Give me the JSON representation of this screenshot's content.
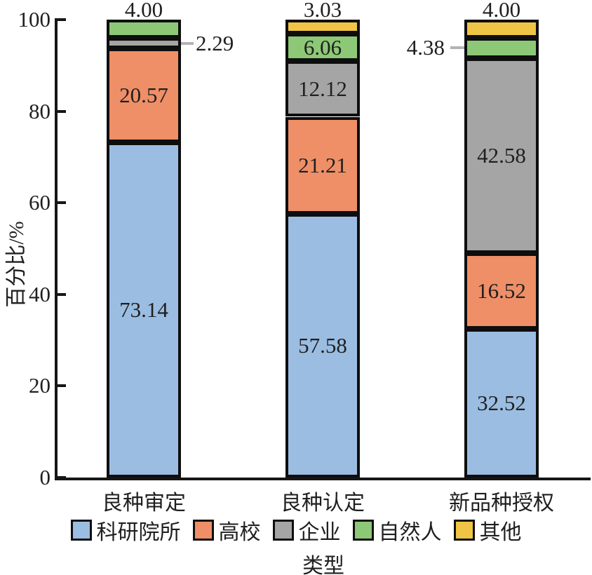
{
  "chart_data": {
    "type": "stacked_bar",
    "title": "",
    "categories": [
      "良种审定",
      "良种认定",
      "新品种授权"
    ],
    "series": [
      {
        "name": "科研院所",
        "color": "#9bbde2",
        "values": [
          73.14,
          57.58,
          32.52
        ]
      },
      {
        "name": "高校",
        "color": "#ef8f67",
        "values": [
          20.57,
          21.21,
          16.52
        ]
      },
      {
        "name": "企业",
        "color": "#a5a5a5",
        "values": [
          2.29,
          12.12,
          42.58
        ]
      },
      {
        "name": "自然人",
        "color": "#8dc877",
        "values": [
          4.0,
          6.06,
          4.38
        ]
      },
      {
        "name": "其他",
        "color": "#f0c546",
        "values": [
          0,
          3.03,
          4.0
        ]
      }
    ],
    "top_labels": [
      "4.00",
      "3.03",
      "4.00"
    ],
    "callouts": [
      {
        "bar": 0,
        "series": 2,
        "text": "2.29",
        "side": "right"
      },
      {
        "bar": 2,
        "series": 3,
        "text": "4.38",
        "side": "left"
      }
    ],
    "ylabel": "百分比/%",
    "xlabel": "类型",
    "yticks": [
      0,
      20,
      40,
      60,
      80,
      100
    ],
    "ylim": [
      0,
      100
    ],
    "legend_position": "bottom",
    "grid": false
  },
  "colors": {
    "axis": "#161616",
    "segment_border": "#0e0e0e",
    "leader_line": "#b3b3b3",
    "text": "#1f1f1f"
  }
}
